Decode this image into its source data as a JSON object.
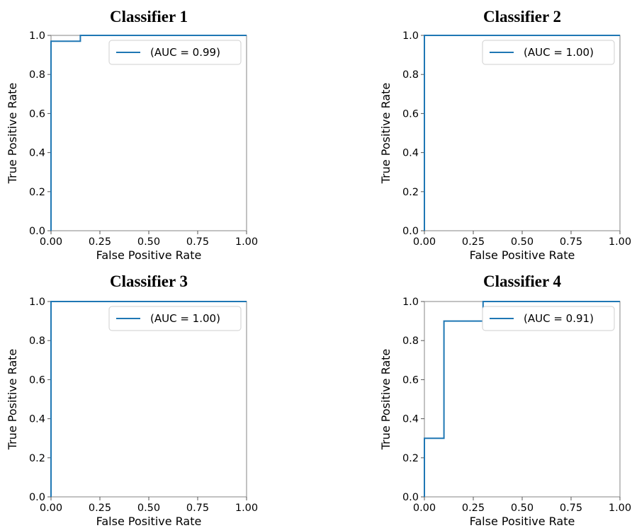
{
  "chart_data": [
    {
      "type": "line",
      "title": "Classifier 1",
      "xlabel": "False Positive Rate",
      "ylabel": "True Positive Rate",
      "xlim": [
        0,
        1
      ],
      "ylim": [
        0,
        1
      ],
      "xticks": [
        "0.00",
        "0.25",
        "0.50",
        "0.75",
        "1.00"
      ],
      "yticks": [
        "0.0",
        "0.2",
        "0.4",
        "0.6",
        "0.8",
        "1.0"
      ],
      "legend": "top-right",
      "series": [
        {
          "name": "(AUC = 0.99)",
          "color": "#1f77b4",
          "x": [
            0,
            0,
            0,
            0.15,
            0.15,
            1.0
          ],
          "y": [
            0,
            0.97,
            0.97,
            0.97,
            1.0,
            1.0
          ]
        }
      ]
    },
    {
      "type": "line",
      "title": "Classifier 2",
      "xlabel": "False Positive Rate",
      "ylabel": "True Positive Rate",
      "xlim": [
        0,
        1
      ],
      "ylim": [
        0,
        1
      ],
      "xticks": [
        "0.00",
        "0.25",
        "0.50",
        "0.75",
        "1.00"
      ],
      "yticks": [
        "0.0",
        "0.2",
        "0.4",
        "0.6",
        "0.8",
        "1.0"
      ],
      "legend": "top-right",
      "series": [
        {
          "name": "(AUC = 1.00)",
          "color": "#1f77b4",
          "x": [
            0,
            0,
            1.0
          ],
          "y": [
            0,
            1.0,
            1.0
          ]
        }
      ]
    },
    {
      "type": "line",
      "title": "Classifier 3",
      "xlabel": "False Positive Rate",
      "ylabel": "True Positive Rate",
      "xlim": [
        0,
        1
      ],
      "ylim": [
        0,
        1
      ],
      "xticks": [
        "0.00",
        "0.25",
        "0.50",
        "0.75",
        "1.00"
      ],
      "yticks": [
        "0.0",
        "0.2",
        "0.4",
        "0.6",
        "0.8",
        "1.0"
      ],
      "legend": "top-right",
      "series": [
        {
          "name": "(AUC = 1.00)",
          "color": "#1f77b4",
          "x": [
            0,
            0,
            1.0
          ],
          "y": [
            0,
            1.0,
            1.0
          ]
        }
      ]
    },
    {
      "type": "line",
      "title": "Classifier 4",
      "xlabel": "False Positive Rate",
      "ylabel": "True Positive Rate",
      "xlim": [
        0,
        1
      ],
      "ylim": [
        0,
        1
      ],
      "xticks": [
        "0.00",
        "0.25",
        "0.50",
        "0.75",
        "1.00"
      ],
      "yticks": [
        "0.0",
        "0.2",
        "0.4",
        "0.6",
        "0.8",
        "1.0"
      ],
      "legend": "top-right",
      "series": [
        {
          "name": "(AUC = 0.91)",
          "color": "#1f77b4",
          "x": [
            0,
            0,
            0.1,
            0.1,
            0.3,
            0.3,
            1.0
          ],
          "y": [
            0,
            0.3,
            0.3,
            0.9,
            0.9,
            1.0,
            1.0
          ]
        }
      ]
    }
  ]
}
